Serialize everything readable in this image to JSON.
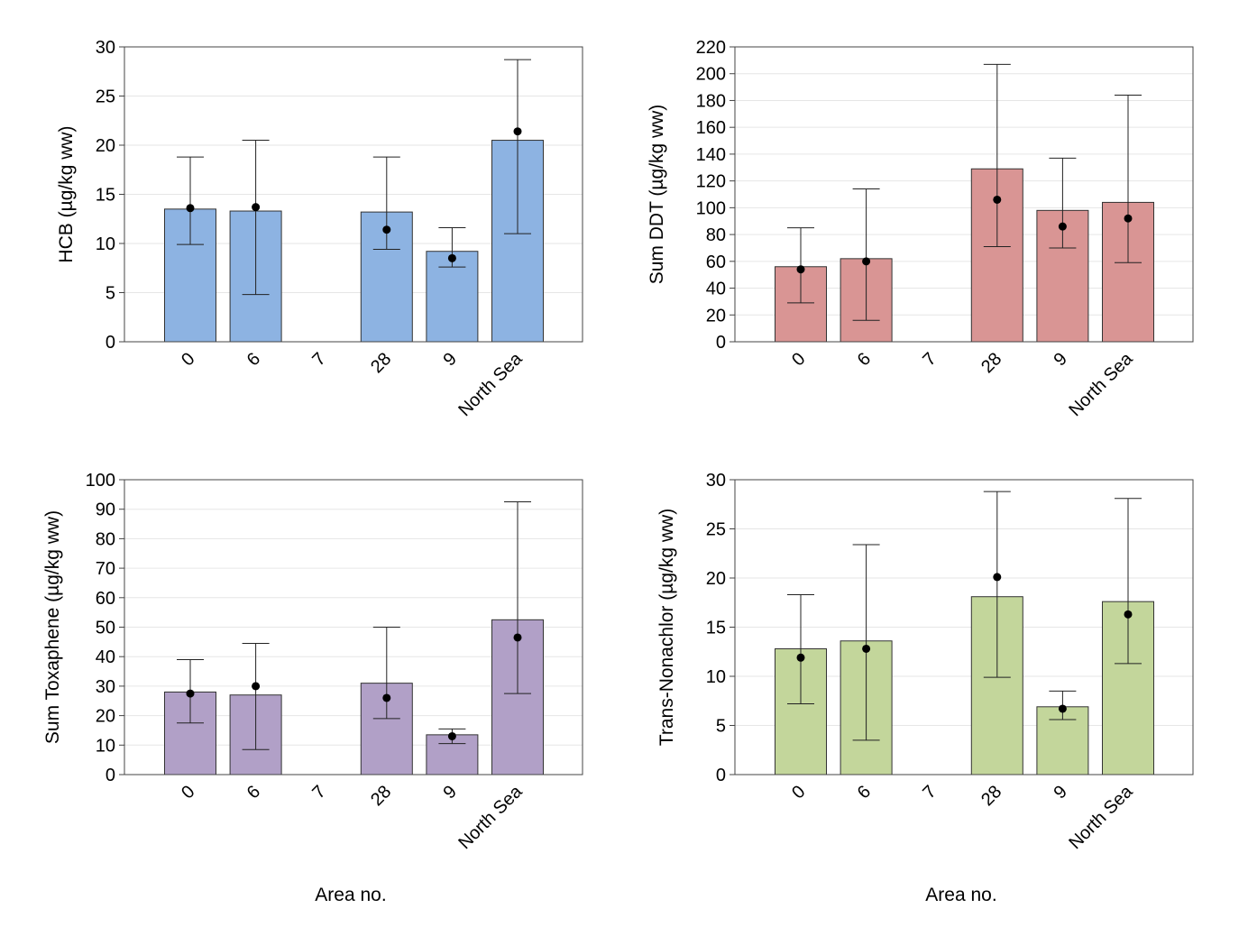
{
  "chart_data": [
    {
      "type": "bar",
      "categories": [
        "0",
        "6",
        "7",
        "28",
        "9",
        "North Sea"
      ],
      "bar_values": [
        13.5,
        13.3,
        null,
        13.2,
        9.2,
        20.5
      ],
      "point_values": [
        13.6,
        13.7,
        null,
        11.4,
        8.5,
        21.4
      ],
      "error_low": [
        9.9,
        4.8,
        null,
        9.4,
        7.6,
        11.0
      ],
      "error_high": [
        18.8,
        20.5,
        null,
        18.8,
        11.6,
        28.7
      ],
      "ylabel": "HCB (µg/kg ww)",
      "xlabel": "",
      "ylim": [
        0,
        30
      ],
      "yticks": [
        0,
        5,
        10,
        15,
        20,
        25,
        30
      ],
      "bar_color": "#8db3e2",
      "grid": true
    },
    {
      "type": "bar",
      "categories": [
        "0",
        "6",
        "7",
        "28",
        "9",
        "North Sea"
      ],
      "bar_values": [
        56,
        62,
        null,
        129,
        98,
        104
      ],
      "point_values": [
        54,
        60,
        null,
        106,
        86,
        92
      ],
      "error_low": [
        29,
        16,
        null,
        71,
        70,
        59
      ],
      "error_high": [
        85,
        114,
        null,
        207,
        137,
        184
      ],
      "ylabel": "Sum DDT (µg/kg ww)",
      "xlabel": "",
      "ylim": [
        0,
        220
      ],
      "yticks": [
        0,
        20,
        40,
        60,
        80,
        100,
        120,
        140,
        160,
        180,
        200,
        220
      ],
      "bar_color": "#d99594",
      "grid": true
    },
    {
      "type": "bar",
      "categories": [
        "0",
        "6",
        "7",
        "28",
        "9",
        "North Sea"
      ],
      "bar_values": [
        28,
        27,
        null,
        31,
        13.5,
        52.5
      ],
      "point_values": [
        27.5,
        30,
        null,
        26,
        13,
        46.5
      ],
      "error_low": [
        17.5,
        8.5,
        null,
        19,
        10.5,
        27.5
      ],
      "error_high": [
        39,
        44.5,
        null,
        50,
        15.5,
        92.5
      ],
      "ylabel": "Sum Toxaphene (µg/kg ww)",
      "xlabel": "Area no.",
      "ylim": [
        0,
        100
      ],
      "yticks": [
        0,
        10,
        20,
        30,
        40,
        50,
        60,
        70,
        80,
        90,
        100
      ],
      "bar_color": "#b1a0c7",
      "grid": true
    },
    {
      "type": "bar",
      "categories": [
        "0",
        "6",
        "7",
        "28",
        "9",
        "North Sea"
      ],
      "bar_values": [
        12.8,
        13.6,
        null,
        18.1,
        6.9,
        17.6
      ],
      "point_values": [
        11.9,
        12.8,
        null,
        20.1,
        6.7,
        16.3
      ],
      "error_low": [
        7.2,
        3.5,
        null,
        9.9,
        5.6,
        11.3
      ],
      "error_high": [
        18.3,
        23.4,
        null,
        28.8,
        8.5,
        28.1
      ],
      "ylabel": "Trans-Nonachlor (µg/kg ww)",
      "xlabel": "Area no.",
      "ylim": [
        0,
        30
      ],
      "yticks": [
        0,
        5,
        10,
        15,
        20,
        25,
        30
      ],
      "bar_color": "#c3d69b",
      "grid": true
    }
  ]
}
